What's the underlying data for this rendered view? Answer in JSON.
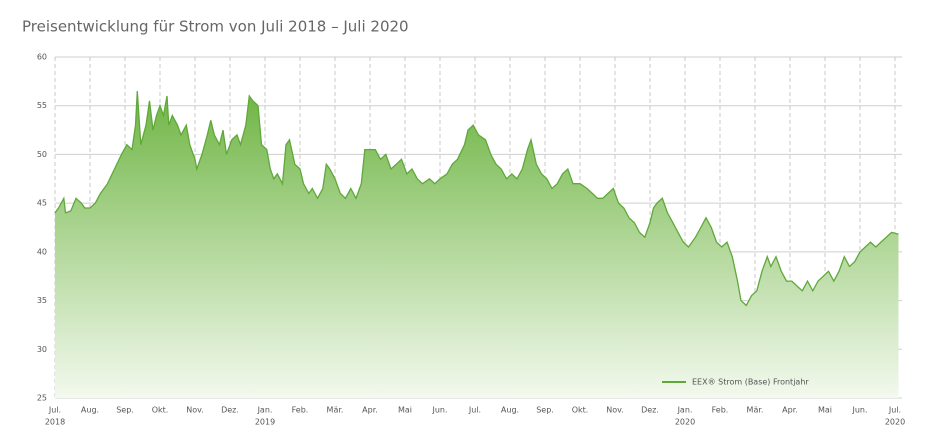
{
  "chart_data": {
    "type": "area",
    "title": "Preisentwicklung für Strom von Juli 2018 – Juli 2020",
    "x": [
      0.0,
      0.1,
      0.25,
      0.3,
      0.45,
      0.6,
      0.75,
      0.85,
      1.0,
      1.15,
      1.3,
      1.5,
      1.7,
      1.9,
      2.05,
      2.2,
      2.3,
      2.35,
      2.45,
      2.6,
      2.7,
      2.8,
      2.9,
      3.0,
      3.1,
      3.2,
      3.25,
      3.35,
      3.5,
      3.6,
      3.75,
      3.85,
      4.0,
      4.05,
      4.2,
      4.35,
      4.45,
      4.55,
      4.7,
      4.8,
      4.9,
      5.05,
      5.2,
      5.3,
      5.45,
      5.55,
      5.65,
      5.8,
      5.9,
      6.05,
      6.15,
      6.25,
      6.35,
      6.5,
      6.6,
      6.7,
      6.85,
      7.0,
      7.1,
      7.25,
      7.35,
      7.5,
      7.65,
      7.75,
      7.85,
      8.0,
      8.15,
      8.3,
      8.45,
      8.6,
      8.75,
      8.85,
      9.0,
      9.15,
      9.3,
      9.45,
      9.6,
      9.75,
      9.9,
      10.05,
      10.2,
      10.35,
      10.5,
      10.7,
      10.85,
      11.0,
      11.2,
      11.35,
      11.5,
      11.7,
      11.8,
      11.95,
      12.1,
      12.3,
      12.45,
      12.6,
      12.75,
      12.9,
      13.05,
      13.2,
      13.35,
      13.5,
      13.6,
      13.75,
      13.9,
      14.05,
      14.2,
      14.35,
      14.5,
      14.65,
      14.8,
      15.0,
      15.2,
      15.35,
      15.5,
      15.65,
      15.8,
      15.95,
      16.1,
      16.25,
      16.4,
      16.55,
      16.7,
      16.85,
      17.0,
      17.1,
      17.2,
      17.35,
      17.5,
      17.65,
      17.8,
      17.95,
      18.1,
      18.3,
      18.45,
      18.6,
      18.75,
      18.9,
      19.05,
      19.2,
      19.35,
      19.5,
      19.6,
      19.75,
      19.9,
      20.05,
      20.2,
      20.35,
      20.45,
      20.6,
      20.75,
      20.9,
      21.05,
      21.2,
      21.35,
      21.5,
      21.65,
      21.8,
      21.95,
      22.1,
      22.25,
      22.4,
      22.55,
      22.7,
      22.85,
      23.0,
      23.15,
      23.3,
      23.45,
      23.6,
      23.75,
      23.9,
      24.1
    ],
    "series": [
      {
        "name": "EEX® Strom (Base) Frontjahr",
        "color": "#5fa83a",
        "values": [
          44,
          44.5,
          45.5,
          44,
          44.2,
          45.5,
          45,
          44.5,
          44.5,
          45,
          46,
          47,
          48.5,
          50,
          51,
          50.5,
          53,
          56.5,
          51,
          53,
          55.5,
          52.5,
          54,
          55,
          54,
          56,
          53,
          54,
          53,
          52,
          53,
          51,
          49.5,
          48.5,
          50,
          52,
          53.5,
          52,
          51,
          52.5,
          50,
          51.5,
          52,
          51,
          53,
          56,
          55.5,
          55,
          51,
          50.5,
          48.5,
          47.5,
          48,
          47,
          51,
          51.5,
          49,
          48.5,
          47,
          46,
          46.5,
          45.5,
          46.5,
          49,
          48.5,
          47.5,
          46,
          45.5,
          46.5,
          45.5,
          47,
          50.5,
          50.5,
          50.5,
          49.5,
          50,
          48.5,
          49,
          49.5,
          48,
          48.5,
          47.5,
          47,
          47.5,
          47,
          47.5,
          48,
          49,
          49.5,
          51,
          52.5,
          53,
          52,
          51.5,
          50,
          49,
          48.5,
          47.5,
          48,
          47.5,
          48.5,
          50.5,
          51.5,
          49,
          48,
          47.5,
          46.5,
          47,
          48,
          48.5,
          47,
          47,
          46.5,
          46,
          45.5,
          45.5,
          46,
          46.5,
          45,
          44.5,
          43.5,
          43,
          42,
          41.5,
          43,
          44.5,
          45,
          45.5,
          44,
          43,
          42,
          41,
          40.5,
          41.5,
          42.5,
          43.5,
          42.5,
          41,
          40.5,
          41,
          39.5,
          37,
          35,
          34.5,
          35.5,
          36,
          38,
          39.5,
          38.5,
          39.5,
          38,
          37,
          37,
          36.5,
          36,
          37,
          36,
          37,
          37.5,
          38,
          37,
          38,
          39.5,
          38.5,
          39,
          40,
          40.5,
          41,
          40.5,
          41,
          41.5,
          42,
          41.8
        ]
      }
    ],
    "xlim": [
      0,
      24.2
    ],
    "xticks": [
      {
        "value": 0,
        "label": "Jul.",
        "sublabel": "2018"
      },
      {
        "value": 1,
        "label": "Aug."
      },
      {
        "value": 2,
        "label": "Sep."
      },
      {
        "value": 3,
        "label": "Okt."
      },
      {
        "value": 4,
        "label": "Nov."
      },
      {
        "value": 5,
        "label": "Dez."
      },
      {
        "value": 6,
        "label": "Jan.",
        "sublabel": "2019"
      },
      {
        "value": 7,
        "label": "Feb."
      },
      {
        "value": 8,
        "label": "Mär."
      },
      {
        "value": 9,
        "label": "Apr."
      },
      {
        "value": 10,
        "label": "Mai"
      },
      {
        "value": 11,
        "label": "Jun."
      },
      {
        "value": 12,
        "label": "Jul."
      },
      {
        "value": 13,
        "label": "Aug."
      },
      {
        "value": 14,
        "label": "Sep."
      },
      {
        "value": 15,
        "label": "Okt."
      },
      {
        "value": 16,
        "label": "Nov."
      },
      {
        "value": 17,
        "label": "Dez."
      },
      {
        "value": 18,
        "label": "Jan.",
        "sublabel": "2020"
      },
      {
        "value": 19,
        "label": "Feb."
      },
      {
        "value": 20,
        "label": "Mär."
      },
      {
        "value": 21,
        "label": "Apr."
      },
      {
        "value": 22,
        "label": "Mai"
      },
      {
        "value": 23,
        "label": "Jun."
      },
      {
        "value": 24,
        "label": "Jul.",
        "sublabel": "2020"
      }
    ],
    "ylim": [
      25,
      60
    ],
    "yticks": [
      25,
      30,
      35,
      40,
      45,
      50,
      55,
      60
    ],
    "grid": true,
    "legend": "lower right"
  }
}
